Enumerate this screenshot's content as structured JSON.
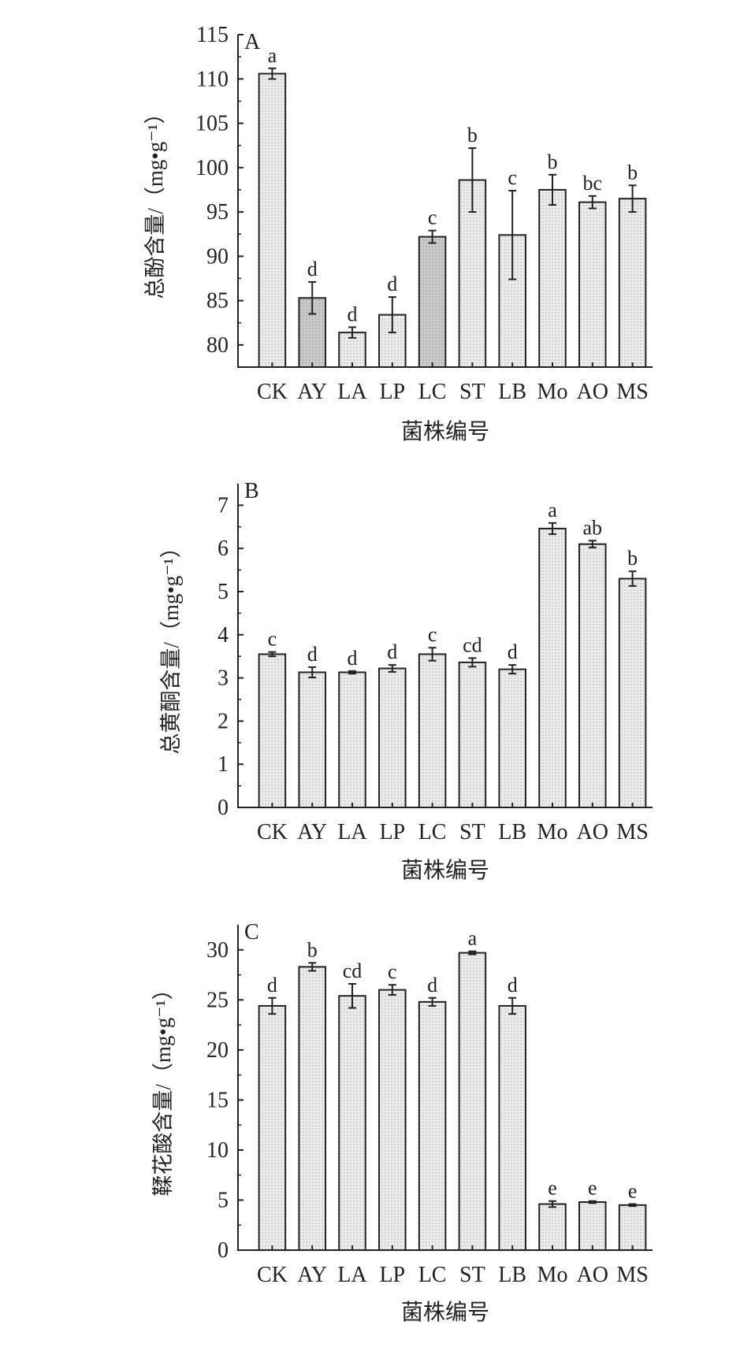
{
  "chart_data": [
    {
      "type": "bar",
      "panel_label": "A",
      "title": "",
      "xlabel": "菌株编号",
      "ylabel": "总酚含量/（mg•g⁻¹）",
      "ylim": [
        77.5,
        115
      ],
      "yticks": [
        80,
        85,
        90,
        95,
        100,
        105,
        110,
        115
      ],
      "categories": [
        "CK",
        "AY",
        "LA",
        "LP",
        "LC",
        "ST",
        "LB",
        "Mo",
        "AO",
        "MS"
      ],
      "values": [
        110.6,
        85.3,
        81.4,
        83.4,
        92.2,
        98.6,
        92.4,
        97.5,
        96.1,
        96.5
      ],
      "errors": [
        0.6,
        1.8,
        0.6,
        2.0,
        0.7,
        3.6,
        5.0,
        1.7,
        0.7,
        1.5
      ],
      "significance": [
        "a",
        "d",
        "d",
        "d",
        "c",
        "b",
        "c",
        "b",
        "bc",
        "b"
      ],
      "dark_bars": [
        "AY",
        "LC"
      ]
    },
    {
      "type": "bar",
      "panel_label": "B",
      "title": "",
      "xlabel": "菌株编号",
      "ylabel": "总黄酮含量/（mg•g⁻¹）",
      "ylim": [
        0,
        7.5
      ],
      "yticks": [
        0,
        1,
        2,
        3,
        4,
        5,
        6,
        7
      ],
      "categories": [
        "CK",
        "AY",
        "LA",
        "LP",
        "LC",
        "ST",
        "LB",
        "Mo",
        "AO",
        "MS"
      ],
      "values": [
        3.55,
        3.13,
        3.13,
        3.22,
        3.55,
        3.36,
        3.2,
        6.46,
        6.1,
        5.3
      ],
      "errors": [
        0.05,
        0.12,
        0.03,
        0.08,
        0.15,
        0.1,
        0.1,
        0.13,
        0.08,
        0.17
      ],
      "significance": [
        "c",
        "d",
        "d",
        "d",
        "c",
        "cd",
        "d",
        "a",
        "ab",
        "b"
      ],
      "dark_bars": []
    },
    {
      "type": "bar",
      "panel_label": "C",
      "title": "",
      "xlabel": "菌株编号",
      "ylabel": "鞣花酸含量/（mg•g⁻¹）",
      "ylim": [
        0,
        32.5
      ],
      "yticks": [
        0,
        5,
        10,
        15,
        20,
        25,
        30
      ],
      "categories": [
        "CK",
        "AY",
        "LA",
        "LP",
        "LC",
        "ST",
        "LB",
        "Mo",
        "AO",
        "MS"
      ],
      "values": [
        24.4,
        28.3,
        25.4,
        26.0,
        24.8,
        29.7,
        24.4,
        4.6,
        4.8,
        4.5
      ],
      "errors": [
        0.8,
        0.4,
        1.2,
        0.5,
        0.4,
        0.15,
        0.8,
        0.3,
        0.1,
        0.1
      ],
      "significance": [
        "d",
        "b",
        "cd",
        "c",
        "d",
        "a",
        "d",
        "e",
        "e",
        "e"
      ],
      "dark_bars": []
    }
  ],
  "colors": {
    "bar_light": "#e4e4e4",
    "bar_dark": "#c4c4c4",
    "axis": "#222222"
  }
}
